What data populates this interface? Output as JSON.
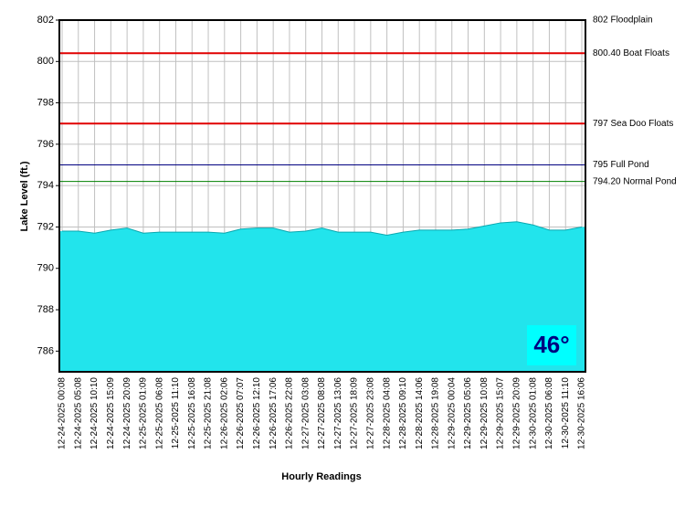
{
  "chart_data": {
    "type": "area",
    "y_label": "Lake Level (ft.)",
    "x_label": "Hourly Readings",
    "badge": "46°",
    "categories": [
      "12-24-2025 00:08",
      "12-24-2025 05:08",
      "12-24-2025 10:10",
      "12-24-2025 15:09",
      "12-24-2025 20:09",
      "12-25-2025 01:09",
      "12-25-2025 06:08",
      "12-25-2025 11:10",
      "12-25-2025 16:08",
      "12-25-2025 21:08",
      "12-26-2025 02:06",
      "12-26-2025 07:07",
      "12-26-2025 12:10",
      "12-26-2025 17:06",
      "12-26-2025 22:08",
      "12-27-2025 03:08",
      "12-27-2025 08:08",
      "12-27-2025 13:06",
      "12-27-2025 18:09",
      "12-27-2025 23:08",
      "12-28-2025 04:08",
      "12-28-2025 09:10",
      "12-28-2025 14:06",
      "12-28-2025 19:08",
      "12-29-2025 00:04",
      "12-29-2025 05:06",
      "12-29-2025 10:08",
      "12-29-2025 15:07",
      "12-29-2025 20:09",
      "12-30-2025 01:08",
      "12-30-2025 06:08",
      "12-30-2025 11:10",
      "12-30-2025 16:06"
    ],
    "values": [
      791.8,
      791.8,
      791.7,
      791.85,
      791.95,
      791.7,
      791.75,
      791.75,
      791.75,
      791.75,
      791.7,
      791.9,
      791.95,
      791.95,
      791.75,
      791.8,
      791.95,
      791.75,
      791.75,
      791.75,
      791.6,
      791.75,
      791.85,
      791.85,
      791.85,
      791.9,
      792.05,
      792.2,
      792.25,
      792.1,
      791.85,
      791.85,
      792.0
    ],
    "color": "#22e4ec",
    "ylim": [
      785,
      802
    ],
    "yticks": [
      786,
      788,
      790,
      792,
      794,
      796,
      798,
      800,
      802
    ],
    "grid": true,
    "reference_lines": [
      {
        "value": 802,
        "label": "802 Floodplain",
        "color": "#e00000"
      },
      {
        "value": 800.4,
        "label": "800.40 Boat Floats",
        "color": "#e00000"
      },
      {
        "value": 797,
        "label": "797 Sea Doo Floats",
        "color": "#e00000"
      },
      {
        "value": 795,
        "label": "795 Full Pond",
        "color": "#000080"
      },
      {
        "value": 794.2,
        "label": "794.20 Normal Pond",
        "color": "#008000"
      }
    ]
  }
}
